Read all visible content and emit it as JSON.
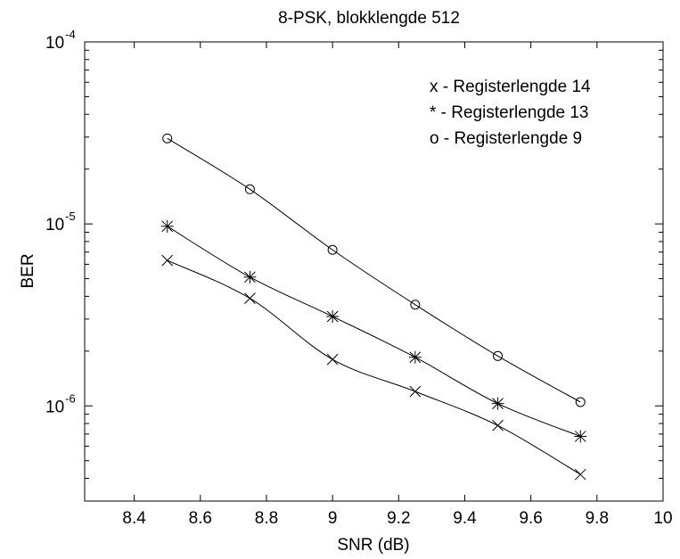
{
  "chart_data": {
    "type": "line",
    "title": "8-PSK, blokklengde 512",
    "xlabel": "SNR (dB)",
    "ylabel": "BER",
    "y_scale": "log",
    "xlim": [
      8.25,
      10
    ],
    "ylim": [
      3e-07,
      0.0001
    ],
    "x_ticks": [
      8.4,
      8.6,
      8.8,
      9,
      9.2,
      9.4,
      9.6,
      9.8,
      10
    ],
    "x_tick_labels": [
      "8.4",
      "8.6",
      "8.8",
      "9",
      "9.2",
      "9.4",
      "9.6",
      "9.8",
      "10"
    ],
    "y_ticks": [
      {
        "value": 1e-06,
        "base": "10",
        "exp": "-6"
      },
      {
        "value": 1e-05,
        "base": "10",
        "exp": "-5"
      },
      {
        "value": 0.0001,
        "base": "10",
        "exp": "-4"
      }
    ],
    "grid": false,
    "legend_position": "top-right",
    "legend": [
      {
        "marker": "x",
        "label": "x - Registerlengde 14"
      },
      {
        "marker": "*",
        "label": "* - Registerlengde 13"
      },
      {
        "marker": "o",
        "label": "o - Registerlengde 9"
      }
    ],
    "x": [
      8.5,
      8.75,
      9.0,
      9.25,
      9.5,
      9.75
    ],
    "series": [
      {
        "marker": "x",
        "values": [
          6.3e-06,
          3.9e-06,
          1.8e-06,
          1.2e-06,
          7.8e-07,
          4.2e-07
        ]
      },
      {
        "marker": "*",
        "values": [
          9.7e-06,
          5.1e-06,
          3.1e-06,
          1.85e-06,
          1.03e-06,
          6.8e-07
        ]
      },
      {
        "marker": "o",
        "values": [
          2.95e-05,
          1.55e-05,
          7.2e-06,
          3.6e-06,
          1.88e-06,
          1.05e-06
        ]
      }
    ]
  }
}
